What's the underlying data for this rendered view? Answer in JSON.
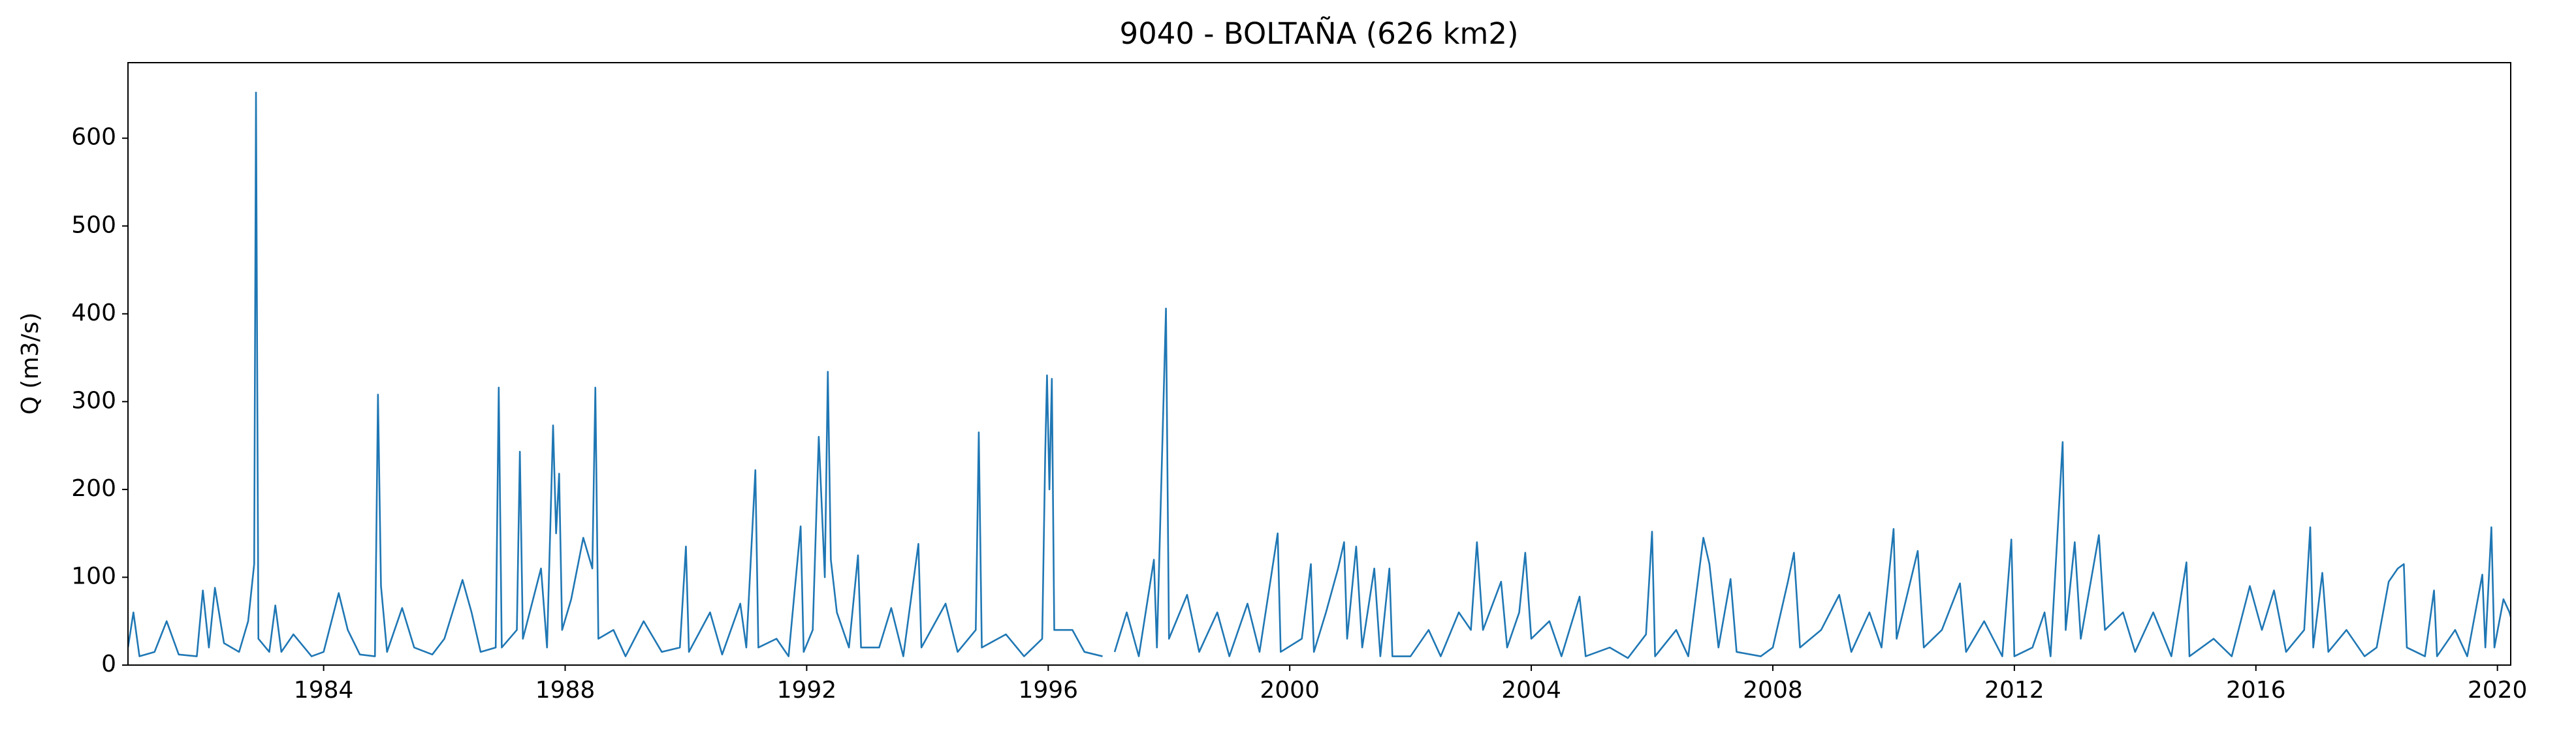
{
  "chart_data": {
    "type": "line",
    "title": "9040 - BOLTAÑA (626 km2)",
    "y_label": "Q (m3/s)",
    "color": "#1f77b4",
    "grid": false,
    "xlim": [
      1980.76,
      2020.22
    ],
    "ylim": [
      0,
      686
    ],
    "xticks": [
      1984,
      1988,
      1992,
      1996,
      2000,
      2004,
      2008,
      2012,
      2016,
      2020
    ],
    "yticks": [
      0,
      100,
      200,
      300,
      400,
      500,
      600
    ],
    "x": [
      1980.76,
      1980.85,
      1980.95,
      1981.2,
      1981.4,
      1981.6,
      1981.9,
      1982.0,
      1982.1,
      1982.2,
      1982.35,
      1982.6,
      1982.75,
      1982.85,
      1982.88,
      1982.92,
      1983.1,
      1983.2,
      1983.3,
      1983.5,
      1983.8,
      1984.0,
      1984.25,
      1984.4,
      1984.6,
      1984.85,
      1984.9,
      1984.95,
      1985.05,
      1985.3,
      1985.5,
      1985.8,
      1986.0,
      1986.3,
      1986.45,
      1986.6,
      1986.85,
      1986.9,
      1986.95,
      1987.2,
      1987.25,
      1987.3,
      1987.6,
      1987.7,
      1987.8,
      1987.85,
      1987.9,
      1987.95,
      1988.1,
      1988.3,
      1988.45,
      1988.5,
      1988.55,
      1988.8,
      1989.0,
      1989.3,
      1989.6,
      1989.9,
      1990.0,
      1990.05,
      1990.4,
      1990.6,
      1990.9,
      1991.0,
      1991.15,
      1991.2,
      1991.5,
      1991.7,
      1991.9,
      1991.95,
      1992.1,
      1992.2,
      1992.3,
      1992.35,
      1992.4,
      1992.5,
      1992.7,
      1992.85,
      1992.9,
      1993.2,
      1993.4,
      1993.6,
      1993.85,
      1993.9,
      1994.3,
      1994.5,
      1994.8,
      1994.85,
      1994.9,
      1995.3,
      1995.6,
      1995.9,
      1995.95,
      1995.98,
      1996.02,
      1996.06,
      1996.1,
      1996.4,
      1996.6,
      1996.9,
      1996.95,
      1997.1,
      1997.3,
      1997.5,
      1997.75,
      1997.8,
      1997.95,
      1998.0,
      1998.3,
      1998.5,
      1998.8,
      1999.0,
      1999.3,
      1999.5,
      1999.8,
      1999.85,
      2000.2,
      2000.35,
      2000.4,
      2000.6,
      2000.8,
      2000.9,
      2000.95,
      2001.1,
      2001.2,
      2001.4,
      2001.5,
      2001.65,
      2001.7,
      2002.0,
      2002.3,
      2002.5,
      2002.8,
      2003.0,
      2003.1,
      2003.2,
      2003.5,
      2003.6,
      2003.8,
      2003.9,
      2004.0,
      2004.3,
      2004.5,
      2004.8,
      2004.9,
      2005.3,
      2005.6,
      2005.9,
      2006.0,
      2006.05,
      2006.4,
      2006.6,
      2006.85,
      2006.95,
      2007.1,
      2007.3,
      2007.4,
      2007.8,
      2008.0,
      2008.25,
      2008.35,
      2008.45,
      2008.8,
      2009.1,
      2009.3,
      2009.6,
      2009.8,
      2010.0,
      2010.05,
      2010.4,
      2010.5,
      2010.8,
      2011.1,
      2011.2,
      2011.5,
      2011.8,
      2011.95,
      2012.0,
      2012.3,
      2012.5,
      2012.6,
      2012.8,
      2012.85,
      2013.0,
      2013.1,
      2013.4,
      2013.5,
      2013.8,
      2014.0,
      2014.3,
      2014.6,
      2014.85,
      2014.9,
      2015.3,
      2015.6,
      2015.9,
      2016.1,
      2016.3,
      2016.5,
      2016.8,
      2016.9,
      2016.95,
      2017.1,
      2017.2,
      2017.5,
      2017.8,
      2018.0,
      2018.2,
      2018.35,
      2018.45,
      2018.5,
      2018.8,
      2018.95,
      2019.0,
      2019.3,
      2019.5,
      2019.75,
      2019.8,
      2019.9,
      2019.95,
      2020.1,
      2020.2,
      2020.22
    ],
    "values": [
      20,
      60,
      10,
      15,
      50,
      12,
      10,
      85,
      20,
      88,
      25,
      15,
      50,
      115,
      652,
      30,
      15,
      68,
      15,
      35,
      10,
      15,
      82,
      40,
      12,
      10,
      308,
      90,
      15,
      65,
      20,
      12,
      30,
      97,
      60,
      15,
      20,
      316,
      20,
      40,
      243,
      30,
      110,
      20,
      273,
      150,
      218,
      40,
      75,
      145,
      110,
      316,
      30,
      40,
      10,
      50,
      15,
      20,
      135,
      15,
      60,
      12,
      70,
      20,
      222,
      20,
      30,
      10,
      158,
      15,
      40,
      260,
      100,
      334,
      120,
      60,
      20,
      125,
      20,
      20,
      65,
      10,
      138,
      20,
      70,
      15,
      40,
      265,
      20,
      35,
      10,
      30,
      240,
      330,
      200,
      326,
      40,
      40,
      15,
      10,
      null,
      15,
      60,
      10,
      120,
      20,
      406,
      30,
      80,
      15,
      60,
      10,
      70,
      15,
      150,
      15,
      30,
      115,
      15,
      60,
      110,
      140,
      30,
      135,
      20,
      110,
      10,
      110,
      10,
      10,
      40,
      10,
      60,
      40,
      140,
      40,
      95,
      20,
      60,
      128,
      30,
      50,
      10,
      78,
      10,
      20,
      8,
      35,
      152,
      10,
      40,
      10,
      145,
      115,
      20,
      98,
      15,
      10,
      20,
      95,
      128,
      20,
      40,
      80,
      15,
      60,
      20,
      155,
      30,
      130,
      20,
      40,
      93,
      15,
      50,
      10,
      143,
      10,
      20,
      60,
      10,
      254,
      40,
      140,
      30,
      148,
      40,
      60,
      15,
      60,
      10,
      117,
      10,
      30,
      10,
      90,
      40,
      85,
      15,
      40,
      157,
      20,
      105,
      15,
      40,
      10,
      20,
      95,
      110,
      115,
      20,
      10,
      85,
      10,
      40,
      10,
      103,
      20,
      157,
      20,
      75,
      60,
      55
    ]
  }
}
